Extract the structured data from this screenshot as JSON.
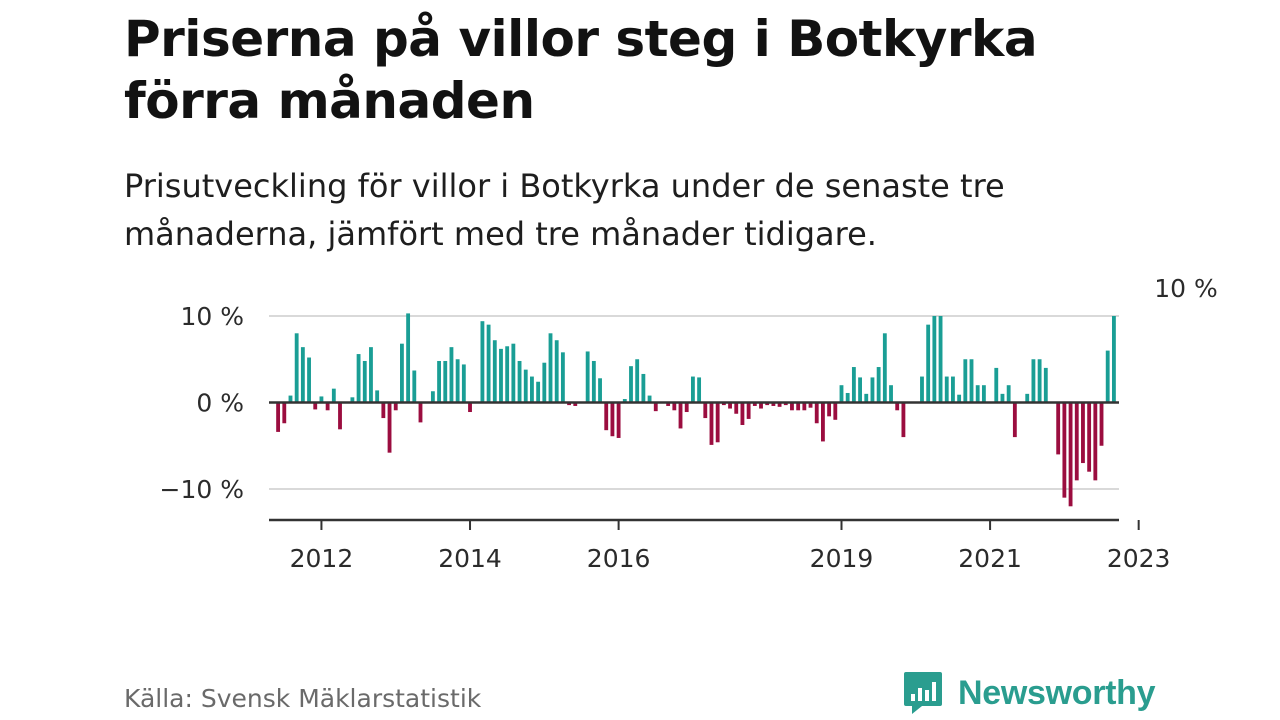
{
  "header": {
    "title": "Priserna på villor steg i Botkyrka förra månaden",
    "subtitle": "Prisutveckling för villor i Botkyrka under de senaste tre månaderna, jämfört med tre månader tidigare."
  },
  "footer": {
    "source": "Källa: Svensk Mäklarstatistik",
    "brand": "Newsworthy"
  },
  "colors": {
    "positive": "#1a9e95",
    "negative": "#9b0d3f",
    "zero_line": "#333333",
    "grid": "#d9d9d9",
    "brand": "#2a9d8f"
  },
  "chart_data": {
    "type": "bar",
    "title": "Priserna på villor steg i Botkyrka förra månaden",
    "xlabel": "",
    "ylabel": "",
    "ylim": [
      -13.5,
      10
    ],
    "y_ticks": [
      {
        "value": 10,
        "label": "10 %"
      },
      {
        "value": 0,
        "label": "0 %"
      },
      {
        "value": -10,
        "label": "−10 %"
      }
    ],
    "x_ticks": [
      {
        "index": 7,
        "label": "2012"
      },
      {
        "index": 31,
        "label": "2014"
      },
      {
        "index": 55,
        "label": "2016"
      },
      {
        "index": 91,
        "label": "2019"
      },
      {
        "index": 115,
        "label": "2021"
      },
      {
        "index": 139,
        "label": "2023"
      }
    ],
    "annotation": {
      "index": 146,
      "label": "10 %"
    },
    "grid": true,
    "values": [
      -3.4,
      -2.4,
      0.8,
      8,
      6.4,
      5.2,
      -0.8,
      0.7,
      -0.9,
      1.6,
      -3.1,
      0,
      0.6,
      5.6,
      4.8,
      6.4,
      1.4,
      -1.8,
      -5.8,
      -0.9,
      6.8,
      10.3,
      3.7,
      -2.3,
      0,
      1.3,
      4.8,
      4.8,
      6.4,
      5,
      4.4,
      -1.1,
      0,
      9.4,
      9,
      7.2,
      6.2,
      6.5,
      6.8,
      4.8,
      3.8,
      3,
      2.4,
      4.6,
      8,
      7.2,
      5.8,
      -0.3,
      -0.4,
      0,
      5.9,
      4.8,
      2.8,
      -3.2,
      -3.9,
      -4.1,
      0.4,
      4.2,
      5,
      3.3,
      0.8,
      -1,
      0,
      -0.4,
      -0.9,
      -3,
      -1.1,
      3,
      2.9,
      -1.8,
      -4.9,
      -4.6,
      -0.3,
      -0.7,
      -1.3,
      -2.6,
      -1.9,
      -0.4,
      -0.7,
      -0.3,
      -0.4,
      -0.5,
      -0.3,
      -0.9,
      -0.9,
      -0.9,
      -0.6,
      -2.4,
      -4.5,
      -1.6,
      -2,
      2,
      1.1,
      4.1,
      2.9,
      1,
      2.9,
      4.1,
      8,
      2,
      -0.9,
      -4,
      0,
      0,
      3,
      9,
      10,
      10,
      3,
      3,
      0.9,
      5,
      5,
      2,
      2,
      0,
      4,
      1,
      2,
      -4,
      0,
      1,
      5,
      5,
      4,
      0,
      -6,
      -11,
      -12,
      -9,
      -7,
      -8,
      -9,
      -5,
      6,
      10
    ]
  }
}
